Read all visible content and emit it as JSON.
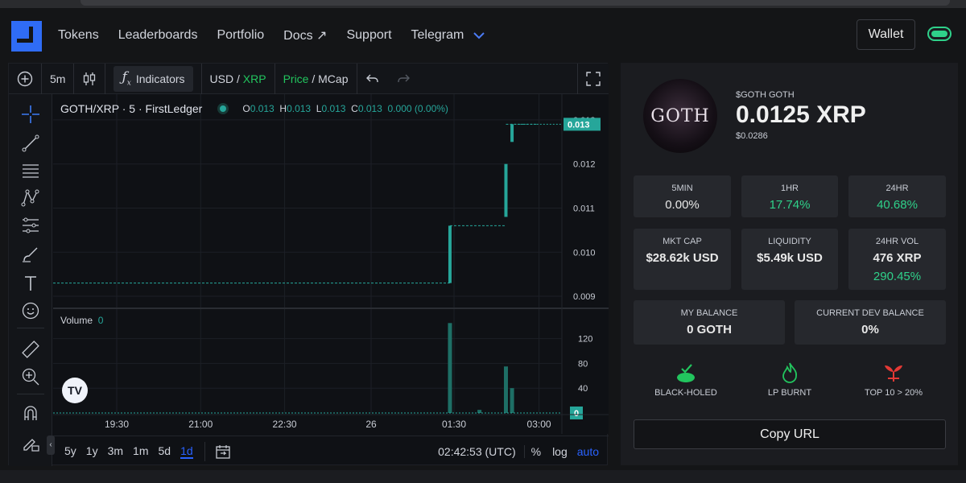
{
  "nav": {
    "links": [
      "Tokens",
      "Leaderboards",
      "Portfolio",
      "Docs ↗",
      "Support",
      "Telegram"
    ],
    "wallet_label": "Wallet"
  },
  "toolbar": {
    "interval": "5m",
    "indicators_label": "Indicators",
    "currency_usd": "USD",
    "currency_xrp": "XRP",
    "mode_price": "Price",
    "mode_mcap": "MCap",
    "slash": "/"
  },
  "legend": {
    "symbol": "GOTH/XRP · 5 · FirstLedger",
    "o_label": "O",
    "o_value": "0.013",
    "h_label": "H",
    "h_value": "0.013",
    "l_label": "L",
    "l_value": "0.013",
    "c_label": "C",
    "c_value": "0.013",
    "change": "0.000 (0.00%)",
    "volume_label": "Volume",
    "volume_value": "0"
  },
  "chart_data": {
    "type": "line",
    "title": "GOTH/XRP · 5 · FirstLedger",
    "x_ticks": [
      "19:30",
      "21:00",
      "22:30",
      "26",
      "01:30",
      "03:00"
    ],
    "price_ticks": [
      "0.013",
      "0.012",
      "0.011",
      "0.010",
      "0.009"
    ],
    "price_ylim": [
      0.0088,
      0.0134
    ],
    "last_price_label": "0.013",
    "candles": [
      {
        "x": 0.78,
        "open": 0.0093,
        "high": 0.0106,
        "low": 0.0093,
        "close": 0.0106
      },
      {
        "x": 0.89,
        "open": 0.0108,
        "high": 0.012,
        "low": 0.0108,
        "close": 0.012
      },
      {
        "x": 0.902,
        "open": 0.0125,
        "high": 0.0129,
        "low": 0.0125,
        "close": 0.0129
      }
    ],
    "step_levels": [
      {
        "x0": 0.0,
        "x1": 0.78,
        "y": 0.0093
      },
      {
        "x0": 0.78,
        "x1": 0.89,
        "y": 0.0106
      },
      {
        "x0": 0.89,
        "x1": 0.95,
        "y": 0.0129
      }
    ],
    "volume_ticks": [
      "120",
      "80",
      "40"
    ],
    "volume_ylim": [
      0,
      148
    ],
    "last_volume_label": "0",
    "volume_bars": [
      {
        "x": 0.78,
        "v": 145
      },
      {
        "x": 0.838,
        "v": 5
      },
      {
        "x": 0.89,
        "v": 75
      },
      {
        "x": 0.902,
        "v": 40
      }
    ]
  },
  "bottombar": {
    "ranges": [
      "5y",
      "1y",
      "3m",
      "1m",
      "5d",
      "1d"
    ],
    "active_range": "1d",
    "time": "02:42:53 (UTC)",
    "percent": "%",
    "log": "log",
    "auto": "auto"
  },
  "token": {
    "name": "$GOTH GOTH",
    "price": "0.0125 XRP",
    "usd": "$0.0286",
    "avatar_text": "GOTH"
  },
  "stats": {
    "min5": {
      "label": "5MIN",
      "value": "0.00%"
    },
    "hr1": {
      "label": "1HR",
      "value": "17.74%"
    },
    "hr24": {
      "label": "24HR",
      "value": "40.68%"
    },
    "mktcap": {
      "label": "MKT CAP",
      "value": "$28.62k USD"
    },
    "liquidity": {
      "label": "LIQUIDITY",
      "value": "$5.49k USD"
    },
    "vol24": {
      "label": "24HR VOL",
      "value": "476 XRP",
      "change": "290.45%"
    },
    "my_balance": {
      "label": "MY BALANCE",
      "value": "0 GOTH"
    },
    "dev_balance": {
      "label": "CURRENT DEV BALANCE",
      "value": "0%"
    }
  },
  "badges": {
    "blackholed": "BLACK-HOLED",
    "lpburnt": "LP BURNT",
    "top10": "TOP 10 > 20%"
  },
  "copy_url_label": "Copy URL",
  "colors": {
    "accent_green": "#2fd18a",
    "brand_blue": "#2f6cf6",
    "chart_teal": "#26a69a"
  }
}
